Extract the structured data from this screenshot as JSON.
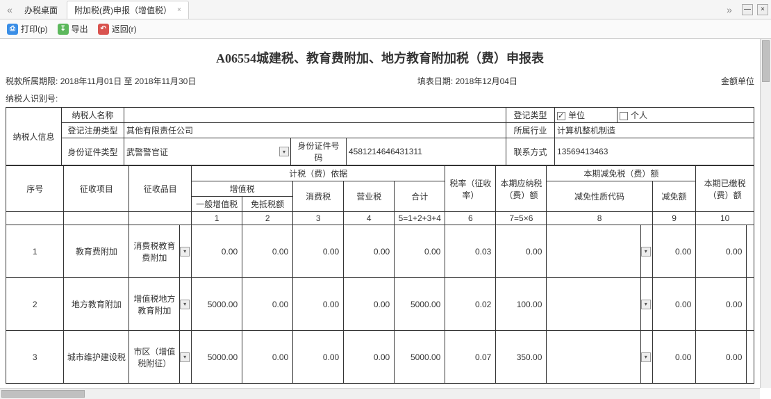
{
  "tabs": [
    {
      "label": "办税桌面",
      "active": false,
      "closable": false
    },
    {
      "label": "附加税(费)申报（增值税）",
      "active": true,
      "closable": true
    }
  ],
  "nav": {
    "left": "«",
    "right": "»"
  },
  "winBtns": {
    "min": "—",
    "close": "×"
  },
  "toolbar": {
    "print": "打印(p)",
    "export": "导出",
    "back": "返回(r)"
  },
  "title": "A06554城建税、教育费附加、地方教育附加税（费）申报表",
  "meta": {
    "periodLabel": "税款所属期限:",
    "periodValue": "2018年11月01日 至 2018年11月30日",
    "fillDateLabel": "填表日期:",
    "fillDateValue": "2018年12月04日",
    "unitLabel": "金额单位",
    "idLabel": "纳税人识别号:",
    "idValue": ""
  },
  "info": {
    "colLabel": "纳税人信息",
    "nameLabel": "纳税人名称",
    "nameValue": "",
    "regTypeLabel": "登记注册类型",
    "regTypeValue": "其他有限责任公司",
    "idTypeLabel": "身份证件类型",
    "idTypeValue": "武警警官证",
    "idNoLabel": "身份证件号码",
    "idNoValue": "4581214646431311",
    "regCatLabel": "登记类型",
    "unitCheckLabel": "单位",
    "unitChecked": true,
    "personCheckLabel": "个人",
    "personChecked": false,
    "industryLabel": "所属行业",
    "industryValue": "计算机整机制造",
    "contactLabel": "联系方式",
    "contactValue": "13569413463"
  },
  "headers": {
    "seq": "序号",
    "item": "征收项目",
    "goods": "征收品目",
    "basis": "计税（费）依据",
    "vat": "增值税",
    "vat_general": "一般增值税",
    "vat_exempt": "免抵税额",
    "consume": "消费税",
    "biz": "营业税",
    "sum": "合计",
    "rate": "税率（征收率）",
    "payable": "本期应纳税（费）额",
    "exemptGroup": "本期减免税（费）额",
    "exemptCode": "减免性质代码",
    "exemptAmt": "减免额",
    "paid": "本期已缴税（费）额",
    "nums": [
      "1",
      "2",
      "3",
      "4",
      "5=1+2+3+4",
      "6",
      "7=5×6",
      "8",
      "9",
      "10"
    ]
  },
  "rows": [
    {
      "seq": "1",
      "item": "教育费附加",
      "goods": "消费税教育费附加",
      "v1": "0.00",
      "v2": "0.00",
      "v3": "0.00",
      "v4": "0.00",
      "v5": "0.00",
      "v6": "0.03",
      "v7": "0.00",
      "v8": "",
      "v9": "0.00",
      "v10": "0.00"
    },
    {
      "seq": "2",
      "item": "地方教育附加",
      "goods": "增值税地方教育附加",
      "v1": "5000.00",
      "v2": "0.00",
      "v3": "0.00",
      "v4": "0.00",
      "v5": "5000.00",
      "v6": "0.02",
      "v7": "100.00",
      "v8": "",
      "v9": "0.00",
      "v10": "0.00"
    },
    {
      "seq": "3",
      "item": "城市维护建设税",
      "goods": "市区（增值税附征）",
      "v1": "5000.00",
      "v2": "0.00",
      "v3": "0.00",
      "v4": "0.00",
      "v5": "5000.00",
      "v6": "0.07",
      "v7": "350.00",
      "v8": "",
      "v9": "0.00",
      "v10": "0.00"
    }
  ],
  "style": {
    "border_color": "#333333",
    "header_bg": "#ffffff",
    "font_size_pt": 9,
    "title_font_size_pt": 14
  }
}
